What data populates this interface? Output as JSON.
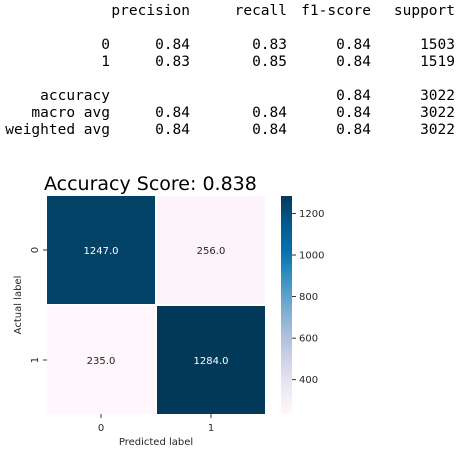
{
  "report": {
    "headers": [
      "precision",
      "recall",
      "f1-score",
      "support"
    ],
    "rows": [
      {
        "label": "0",
        "precision": "0.84",
        "recall": "0.83",
        "f1": "0.84",
        "support": "1503"
      },
      {
        "label": "1",
        "precision": "0.83",
        "recall": "0.85",
        "f1": "0.84",
        "support": "1519"
      },
      {
        "label": "accuracy",
        "precision": "",
        "recall": "",
        "f1": "0.84",
        "support": "3022"
      },
      {
        "label": "macro avg",
        "precision": "0.84",
        "recall": "0.84",
        "f1": "0.84",
        "support": "3022"
      },
      {
        "label": "weighted avg",
        "precision": "0.84",
        "recall": "0.84",
        "f1": "0.84",
        "support": "3022"
      }
    ]
  },
  "chart_data": {
    "type": "heatmap",
    "title": "Accuracy Score: 0.838",
    "xlabel": "Predicted label",
    "ylabel": "Actual label",
    "x_categories": [
      "0",
      "1"
    ],
    "y_categories": [
      "0",
      "1"
    ],
    "values": [
      [
        1247.0,
        256.0
      ],
      [
        235.0,
        1284.0
      ]
    ],
    "cell_labels": [
      [
        "1247.0",
        "256.0"
      ],
      [
        "235.0",
        "1284.0"
      ]
    ],
    "colorbar": {
      "min": 235,
      "max": 1284,
      "ticks": [
        400,
        600,
        800,
        1000,
        1200
      ]
    },
    "colormap_low": "#fff7fb",
    "colormap_high": "#023858"
  }
}
